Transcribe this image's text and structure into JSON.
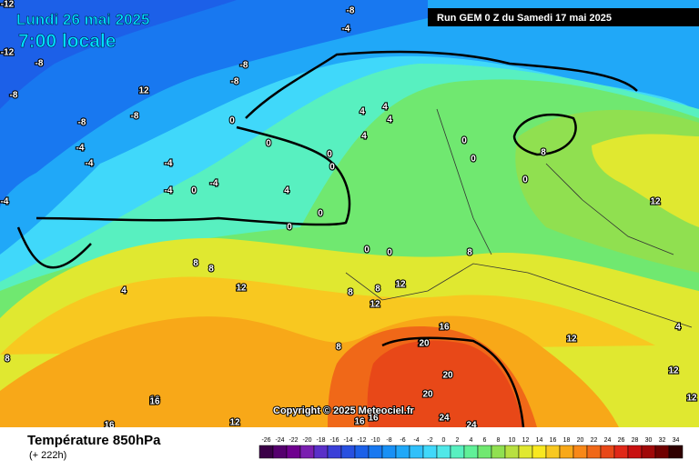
{
  "header": {
    "date": "Lundi 26 mai 2025",
    "time": "7:00 locale",
    "run": "Run GEM 0 Z du Samedi 17 mai 2025"
  },
  "copyright": "Copyright © 2025 Meteociel.fr",
  "footer": {
    "title": "Température 850hPa",
    "lead": "(+ 222h)"
  },
  "scale": {
    "labels": [
      "-26",
      "-24",
      "-22",
      "-20",
      "-18",
      "-16",
      "-14",
      "-12",
      "-10",
      "-8",
      "-6",
      "-4",
      "-2",
      "0",
      "2",
      "4",
      "6",
      "8",
      "10",
      "12",
      "14",
      "16",
      "18",
      "20",
      "22",
      "24",
      "26",
      "28",
      "30",
      "32",
      "34"
    ],
    "colors": [
      "#3a0047",
      "#55006e",
      "#6f008f",
      "#7a1fb0",
      "#5a2fc8",
      "#3a3fd8",
      "#2850e0",
      "#1c60e8",
      "#1878f0",
      "#1890f5",
      "#20a8f8",
      "#30c0fa",
      "#40d8fa",
      "#50e8e8",
      "#58f0c0",
      "#60f098",
      "#70e870",
      "#90e050",
      "#b8e040",
      "#e0e830",
      "#f8e820",
      "#f8c820",
      "#f8a818",
      "#f88818",
      "#f06818",
      "#e84818",
      "#e02818",
      "#c81010",
      "#a00808",
      "#700000",
      "#300000"
    ]
  },
  "map_labels": [
    "-12",
    "-8",
    "-4",
    "12",
    "-12",
    "-8",
    "-8",
    "-8",
    "-8",
    "-8",
    "-8",
    "-4",
    "-4",
    "-4",
    "-4",
    "-4",
    "-4",
    "0",
    "0",
    "0",
    "4",
    "4",
    "4",
    "4",
    "4",
    "0",
    "0",
    "0",
    "0",
    "0",
    "0",
    "0",
    "0",
    "0",
    "8",
    "8",
    "8",
    "8",
    "12",
    "12",
    "8",
    "8",
    "12",
    "16",
    "20",
    "20",
    "20",
    "24",
    "24",
    "16",
    "16",
    "12",
    "16",
    "16",
    "12",
    "8",
    "4",
    "4",
    "12",
    "12",
    "12",
    "8",
    "16",
    "20"
  ]
}
